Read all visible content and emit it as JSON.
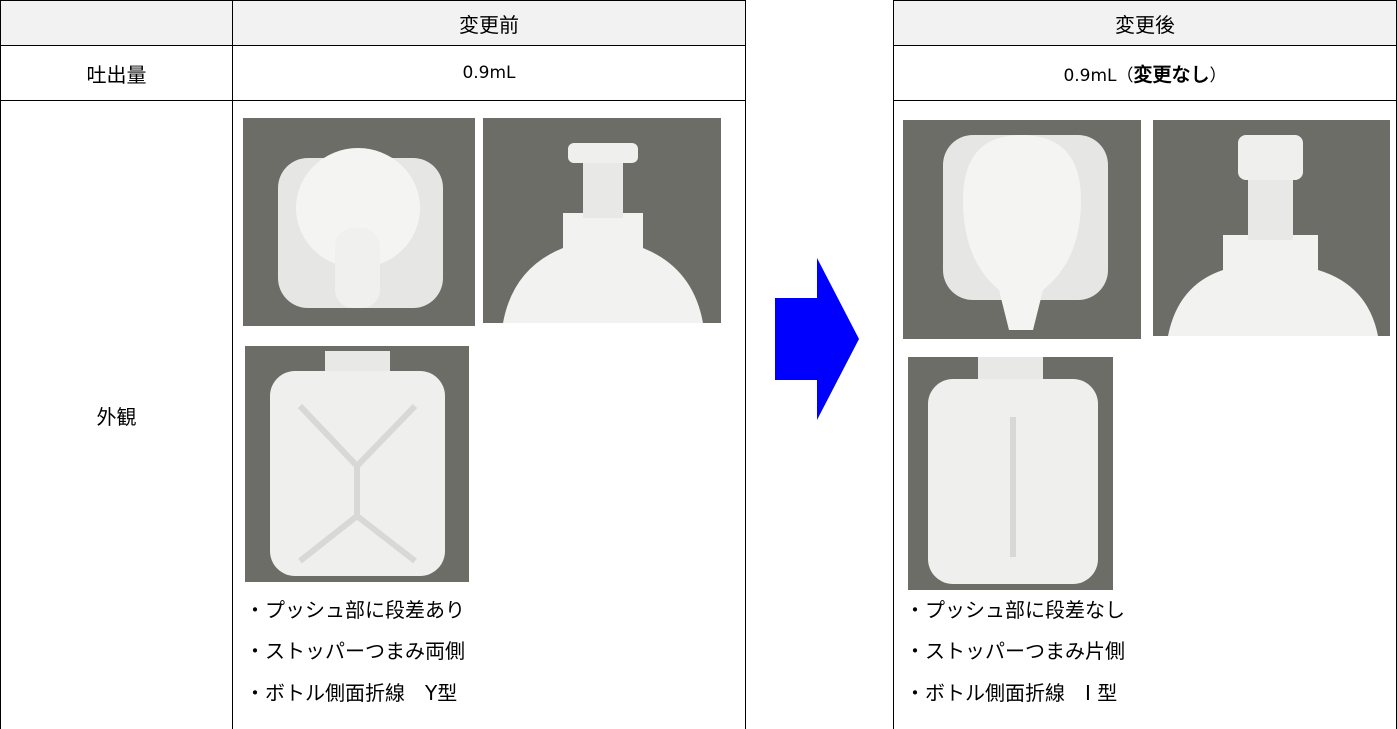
{
  "left_table": {
    "header": "変更前",
    "rows": [
      {
        "label": "吐出量",
        "value": "0.9mL"
      },
      {
        "label": "外観",
        "notes": [
          "・プッシュ部に段差あり",
          "・ストッパーつまみ両側",
          "・ボトル側面折線　Y型"
        ]
      }
    ]
  },
  "right_table": {
    "header": "変更後",
    "amount": {
      "text": "0.9mL（",
      "emphasis": "変更なし",
      "closing": "）"
    },
    "notes": [
      "・プッシュ部に段差なし",
      "・ストッパーつまみ片側",
      "・ボトル側面折線　I 型"
    ]
  }
}
